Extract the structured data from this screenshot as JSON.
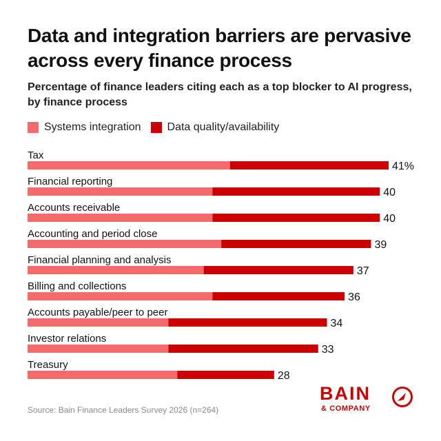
{
  "title": "Data and integration barriers are pervasive across every finance process",
  "subtitle": "Percentage of finance leaders citing each as a top blocker to AI progress, by finance process",
  "source": "Source: Bain Finance Leaders Survey 2026 (n=264)",
  "logo": {
    "word": "BAIN",
    "sub": "& COMPANY"
  },
  "colors": {
    "systems": "#f36b6b",
    "data": "#cc0000",
    "text": "#111111",
    "muted": "#8a8a8a"
  },
  "chart_data": {
    "type": "bar",
    "orientation": "horizontal",
    "stacked": true,
    "categories": [
      "Tax",
      "Financial reporting",
      "Accounts receivable",
      "Accounting and period close",
      "Financial planning and analysis",
      "Billing and collections",
      "Accounts payable/peer to peer",
      "Investor relations",
      "Treasury"
    ],
    "series": [
      {
        "name": "Systems integration",
        "values": [
          23,
          21,
          21,
          22,
          20,
          21,
          16,
          16,
          17
        ]
      },
      {
        "name": "Data quality/availability",
        "values": [
          18,
          19,
          19,
          17,
          17,
          15,
          18,
          17,
          11
        ]
      }
    ],
    "totals": [
      41,
      40,
      40,
      39,
      37,
      36,
      34,
      33,
      28
    ],
    "total_labels": [
      "41%",
      "40",
      "40",
      "39",
      "37",
      "36",
      "34",
      "33",
      "28"
    ],
    "xlim": [
      0,
      41
    ],
    "legend_position": "top-left",
    "grid": false
  }
}
